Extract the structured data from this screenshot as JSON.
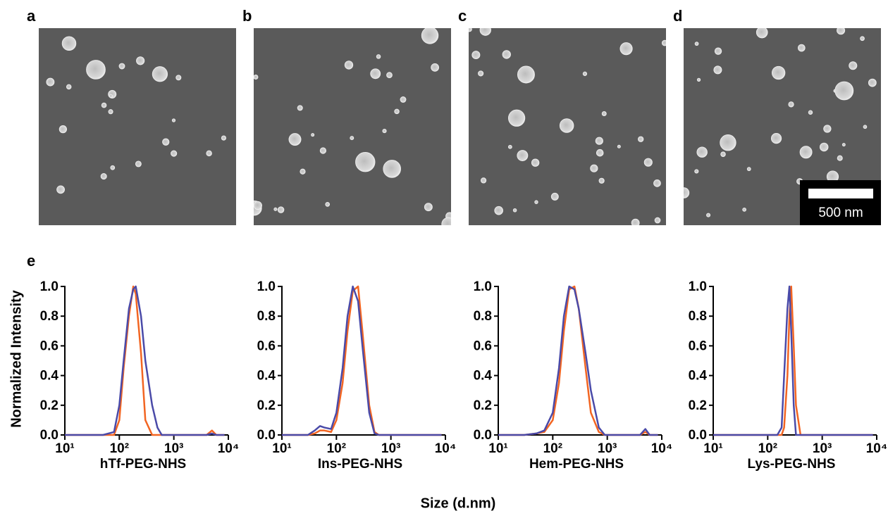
{
  "panel_labels": [
    "a",
    "b",
    "c",
    "d",
    "e"
  ],
  "scale_bar": "500 nm",
  "y_label": "Normalized Intensity",
  "x_label": "Size (d.nm)",
  "chart_data": [
    {
      "type": "line",
      "title": "hTf-PEG-NHS",
      "x_scale": "log",
      "x": [
        10,
        50,
        80,
        100,
        120,
        150,
        180,
        200,
        250,
        300,
        400,
        500,
        600,
        1000,
        4000,
        5000,
        6000,
        8500
      ],
      "series": [
        {
          "color": "#f26522",
          "values": [
            0,
            0,
            0,
            0.1,
            0.45,
            0.8,
            1.0,
            0.95,
            0.55,
            0.1,
            0,
            0,
            0,
            0,
            0,
            0.03,
            0,
            0
          ]
        },
        {
          "color": "#4a4aa8",
          "values": [
            0,
            0,
            0.02,
            0.2,
            0.5,
            0.85,
            0.98,
            1.0,
            0.8,
            0.5,
            0.2,
            0.05,
            0,
            0,
            0,
            0.01,
            0,
            0
          ]
        }
      ],
      "xlim": [
        10,
        10000
      ],
      "xticks": [
        {
          "value": 10,
          "label": "10¹"
        },
        {
          "value": 100,
          "label": "10²"
        },
        {
          "value": 1000,
          "label": "10³"
        },
        {
          "value": 10000,
          "label": "10⁴"
        }
      ],
      "ylim": [
        0,
        1
      ],
      "yticks": [
        {
          "value": 0,
          "label": "0.0"
        },
        0.2,
        0.4,
        0.6,
        0.8,
        {
          "value": 1,
          "label": "1.0"
        }
      ]
    },
    {
      "type": "line",
      "title": "Ins-PEG-NHS",
      "x_scale": "log",
      "x": [
        10,
        30,
        40,
        50,
        60,
        80,
        100,
        130,
        160,
        200,
        250,
        300,
        400,
        500,
        600,
        1000,
        8500
      ],
      "series": [
        {
          "color": "#f26522",
          "values": [
            0,
            0,
            0.01,
            0.03,
            0.03,
            0.02,
            0.1,
            0.35,
            0.7,
            0.97,
            1.0,
            0.7,
            0.2,
            0.02,
            0,
            0,
            0
          ]
        },
        {
          "color": "#4a4aa8",
          "values": [
            0,
            0,
            0.03,
            0.06,
            0.05,
            0.04,
            0.15,
            0.45,
            0.8,
            1.0,
            0.9,
            0.6,
            0.15,
            0.01,
            0,
            0,
            0
          ]
        }
      ],
      "xlim": [
        10,
        10000
      ],
      "xticks": [
        {
          "value": 10,
          "label": "10¹"
        },
        {
          "value": 100,
          "label": "10²"
        },
        {
          "value": 1000,
          "label": "10³"
        },
        {
          "value": 10000,
          "label": "10⁴"
        }
      ],
      "ylim": [
        0,
        1
      ],
      "yticks": [
        {
          "value": 0,
          "label": "0.0"
        },
        0.2,
        0.4,
        0.6,
        0.8,
        {
          "value": 1,
          "label": "1.0"
        }
      ]
    },
    {
      "type": "line",
      "title": "Hem-PEG-NHS",
      "x_scale": "log",
      "x": [
        10,
        30,
        50,
        70,
        100,
        130,
        160,
        200,
        250,
        300,
        400,
        500,
        700,
        900,
        1000,
        4000,
        5000,
        6000,
        8500
      ],
      "series": [
        {
          "color": "#f26522",
          "values": [
            0,
            0,
            0.01,
            0.02,
            0.1,
            0.35,
            0.7,
            0.98,
            1.0,
            0.85,
            0.45,
            0.15,
            0.02,
            0,
            0,
            0,
            0.02,
            0,
            0
          ]
        },
        {
          "color": "#4a4aa8",
          "values": [
            0,
            0,
            0.01,
            0.03,
            0.15,
            0.45,
            0.8,
            1.0,
            0.98,
            0.85,
            0.55,
            0.3,
            0.05,
            0,
            0,
            0,
            0.04,
            0,
            0
          ]
        }
      ],
      "xlim": [
        10,
        10000
      ],
      "xticks": [
        {
          "value": 10,
          "label": "10¹"
        },
        {
          "value": 100,
          "label": "10²"
        },
        {
          "value": 1000,
          "label": "10³"
        },
        {
          "value": 10000,
          "label": "10⁴"
        }
      ],
      "ylim": [
        0,
        1
      ],
      "yticks": [
        {
          "value": 0,
          "label": "0.0"
        },
        0.2,
        0.4,
        0.6,
        0.8,
        {
          "value": 1,
          "label": "1.0"
        }
      ]
    },
    {
      "type": "line",
      "title": "Lys-PEG-NHS",
      "x_scale": "log",
      "x": [
        10,
        100,
        150,
        180,
        200,
        230,
        250,
        270,
        300,
        330,
        400,
        8500
      ],
      "series": [
        {
          "color": "#f26522",
          "values": [
            0,
            0,
            0,
            0,
            0.05,
            0.4,
            0.8,
            1.0,
            0.6,
            0.2,
            0,
            0
          ]
        },
        {
          "color": "#4a4aa8",
          "values": [
            0,
            0,
            0,
            0.05,
            0.4,
            0.85,
            1.0,
            0.7,
            0.2,
            0,
            0,
            0
          ]
        }
      ],
      "xlim": [
        10,
        10000
      ],
      "xticks": [
        {
          "value": 10,
          "label": "10¹"
        },
        {
          "value": 100,
          "label": "10²"
        },
        {
          "value": 1000,
          "label": "10³"
        },
        {
          "value": 10000,
          "label": "10⁴"
        }
      ],
      "ylim": [
        0,
        1
      ],
      "yticks": [
        {
          "value": 0,
          "label": "0.0"
        },
        0.2,
        0.4,
        0.6,
        0.8,
        {
          "value": 1,
          "label": "1.0"
        }
      ]
    }
  ]
}
